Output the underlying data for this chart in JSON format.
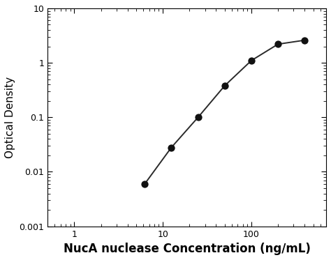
{
  "x_data": [
    6.25,
    12.5,
    25,
    50,
    100,
    200,
    400
  ],
  "y_data": [
    0.006,
    0.028,
    0.1,
    0.38,
    1.1,
    2.2,
    2.6
  ],
  "xlim_log": [
    -0.301,
    2.845
  ],
  "ylim": [
    0.001,
    10
  ],
  "xlabel": "NucA nuclease Concentration (ng/mL)",
  "ylabel": "Optical Density",
  "line_color": "#2a2a2a",
  "dot_color": "#111111",
  "dot_size": 55,
  "background_color": "#ffffff",
  "xlabel_fontsize": 12,
  "ylabel_fontsize": 11,
  "xticks": [
    1,
    10,
    100
  ],
  "yticks": [
    0.001,
    0.01,
    0.1,
    1,
    10
  ]
}
